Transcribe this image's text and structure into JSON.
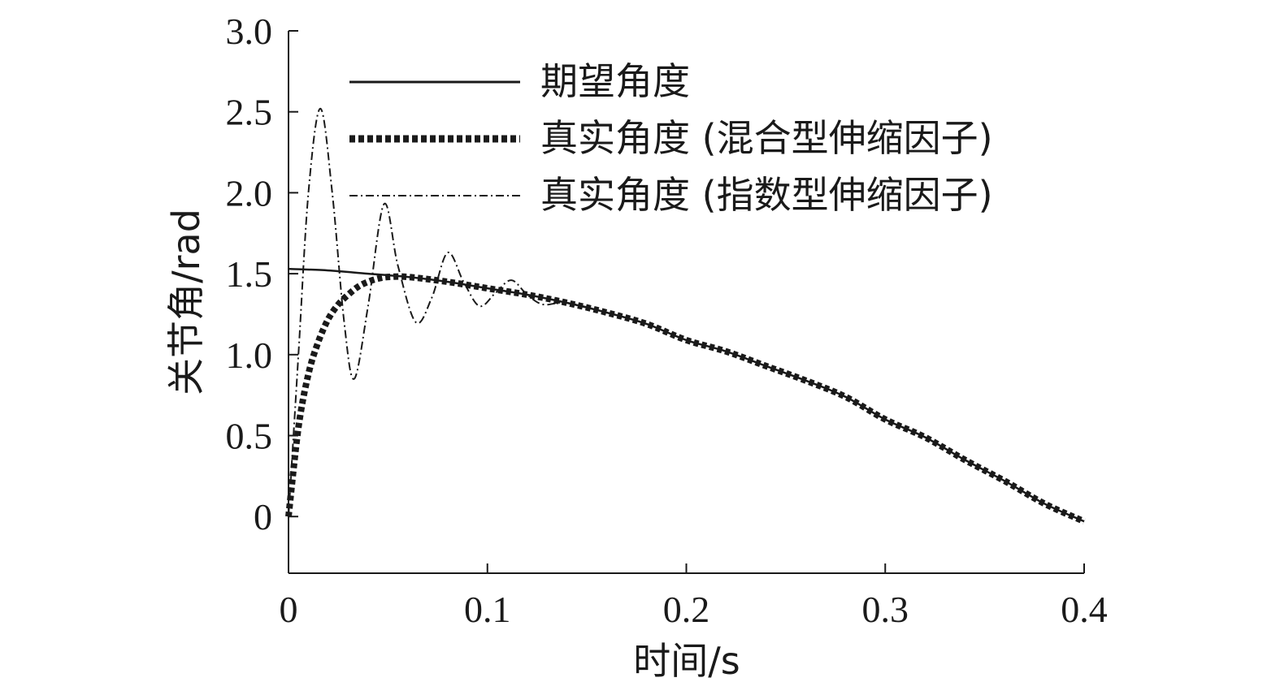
{
  "chart_data": {
    "type": "line",
    "xlabel": "时间/s",
    "ylabel": "关节角/rad",
    "xlim": [
      0,
      0.4
    ],
    "ylim": [
      -0.35,
      3.0
    ],
    "x_ticks": [
      "0",
      "0.1",
      "0.2",
      "0.3",
      "0.4"
    ],
    "y_ticks": [
      "0",
      "0.5",
      "1.0",
      "1.5",
      "2.0",
      "2.5",
      "3.0"
    ],
    "grid": false,
    "legend_position": "top-right",
    "series": [
      {
        "name": "期望角度",
        "style": "solid",
        "x": [
          0,
          0.02,
          0.04,
          0.06,
          0.08,
          0.1,
          0.12,
          0.14,
          0.16,
          0.18,
          0.2,
          0.22,
          0.24,
          0.26,
          0.28,
          0.3,
          0.32,
          0.34,
          0.36,
          0.38,
          0.4
        ],
        "y": [
          1.53,
          1.52,
          1.5,
          1.48,
          1.45,
          1.41,
          1.37,
          1.32,
          1.26,
          1.19,
          1.09,
          1.02,
          0.93,
          0.84,
          0.74,
          0.6,
          0.49,
          0.35,
          0.22,
          0.08,
          -0.03
        ]
      },
      {
        "name": "真实角度 (混合型伸缩因子)",
        "style": "thick-dotted",
        "x": [
          0,
          0.005,
          0.01,
          0.015,
          0.02,
          0.025,
          0.03,
          0.035,
          0.04,
          0.045,
          0.05,
          0.06,
          0.08,
          0.1,
          0.12,
          0.14,
          0.16,
          0.18,
          0.2,
          0.22,
          0.24,
          0.26,
          0.28,
          0.3,
          0.32,
          0.34,
          0.36,
          0.38,
          0.4
        ],
        "y": [
          0,
          0.55,
          0.88,
          1.08,
          1.22,
          1.31,
          1.37,
          1.42,
          1.45,
          1.47,
          1.48,
          1.48,
          1.45,
          1.41,
          1.37,
          1.32,
          1.26,
          1.19,
          1.09,
          1.02,
          0.93,
          0.84,
          0.74,
          0.6,
          0.49,
          0.35,
          0.22,
          0.08,
          -0.03
        ]
      },
      {
        "name": "真实角度 (指数型伸缩因子)",
        "style": "dash-dot",
        "x": [
          0,
          0.005,
          0.01,
          0.016,
          0.022,
          0.028,
          0.033,
          0.04,
          0.048,
          0.055,
          0.064,
          0.072,
          0.08,
          0.088,
          0.096,
          0.104,
          0.112,
          0.12,
          0.128,
          0.14,
          0.16,
          0.18,
          0.2,
          0.22,
          0.24,
          0.26,
          0.28,
          0.3,
          0.32,
          0.34,
          0.36,
          0.38,
          0.4
        ],
        "y": [
          0,
          1.0,
          2.0,
          2.52,
          2.0,
          1.2,
          0.85,
          1.3,
          1.93,
          1.55,
          1.2,
          1.35,
          1.63,
          1.45,
          1.3,
          1.38,
          1.46,
          1.37,
          1.31,
          1.32,
          1.26,
          1.19,
          1.09,
          1.02,
          0.93,
          0.84,
          0.74,
          0.6,
          0.49,
          0.35,
          0.22,
          0.08,
          -0.03
        ]
      }
    ]
  }
}
